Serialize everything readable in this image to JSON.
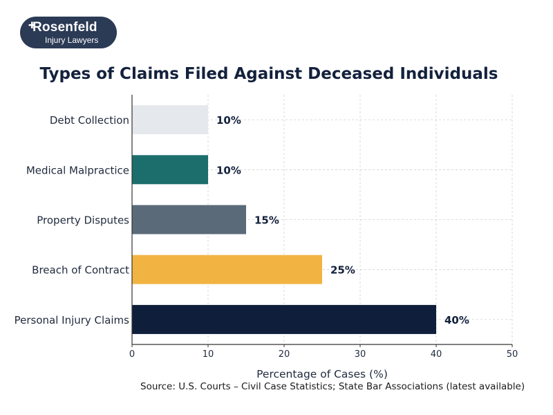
{
  "logo": {
    "name": "Rosenfeld",
    "subtitle": "Injury Lawyers"
  },
  "chart_data": {
    "type": "bar",
    "orientation": "horizontal",
    "title": "Types of Claims Filed Against Deceased Individuals",
    "xlabel": "Percentage of Cases (%)",
    "ylabel": "",
    "xlim": [
      0,
      50
    ],
    "xticks": [
      0,
      10,
      20,
      30,
      40,
      50
    ],
    "grid": true,
    "bar_label_suffix": "%",
    "categories": [
      "Debt Collection",
      "Medical Malpractice",
      "Property Disputes",
      "Breach of Contract",
      "Personal Injury Claims"
    ],
    "values": [
      10,
      10,
      15,
      25,
      40
    ],
    "colors": [
      "#e5e8ec",
      "#1b6e6b",
      "#5a6a78",
      "#f1b443",
      "#0f1f3b"
    ],
    "source": "Source: U.S. Courts – Civil Case Statistics; State Bar Associations (latest available)"
  }
}
